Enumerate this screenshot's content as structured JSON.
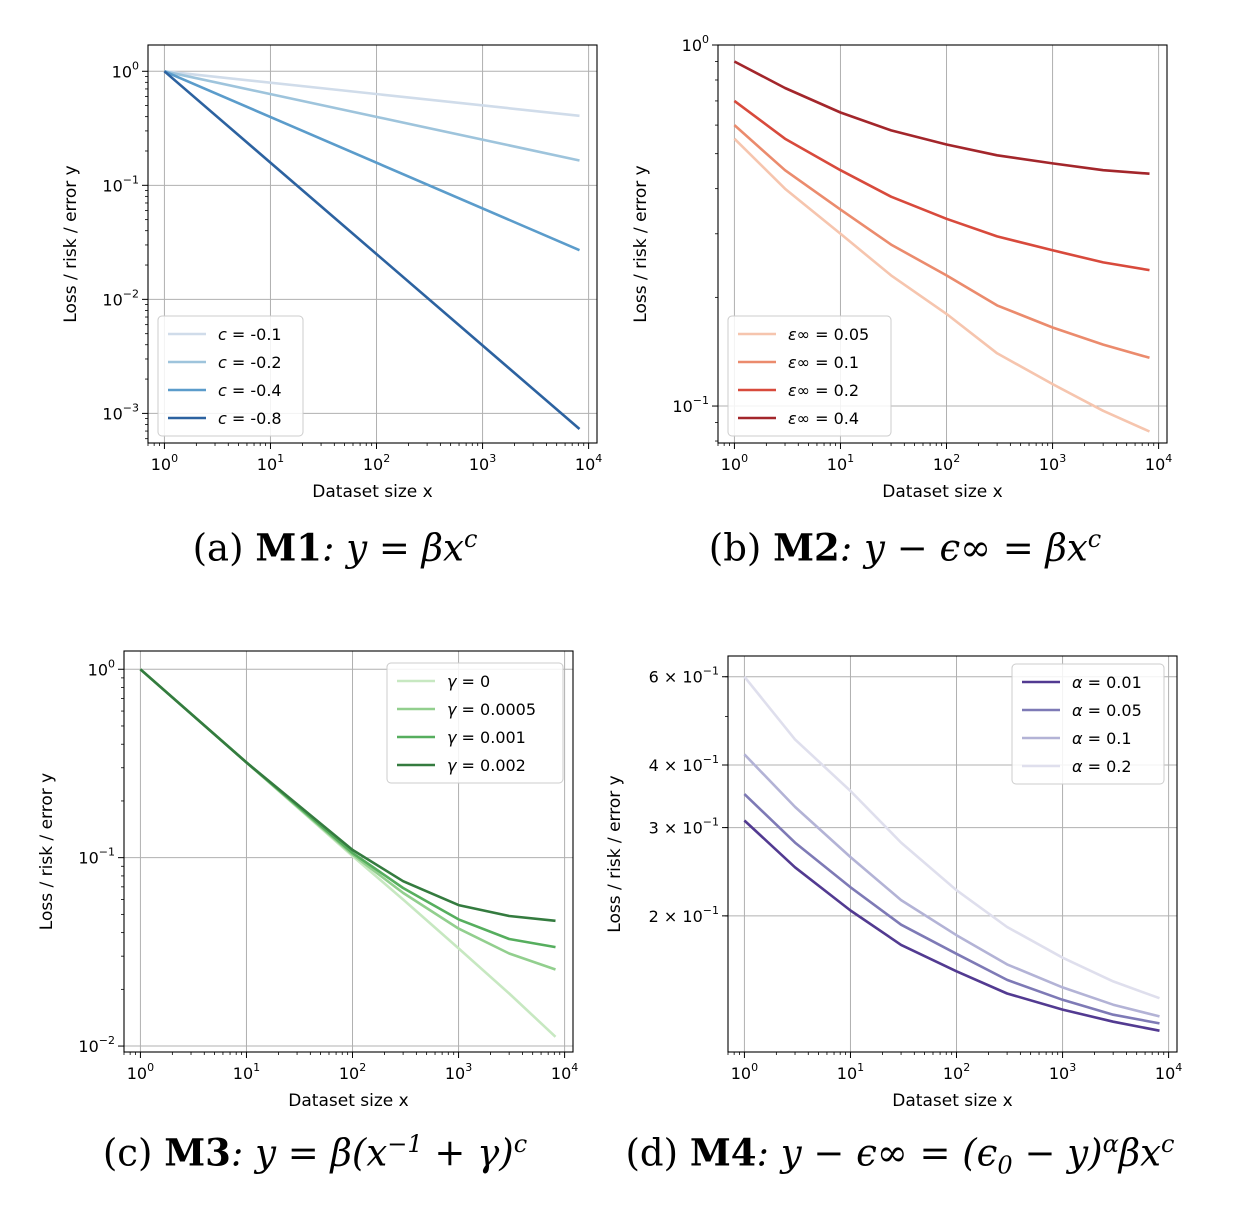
{
  "chart_data": [
    {
      "type": "line",
      "panel": "a",
      "x_scale": "log",
      "y_scale": "log",
      "xlim": [
        0.7,
        12000
      ],
      "ylim": [
        0.00055,
        1.7
      ],
      "xlabel": "Dataset size x",
      "ylabel": "Loss / risk / error y",
      "x_ticks": [
        {
          "v": 1,
          "base": "10",
          "exp": "0"
        },
        {
          "v": 10,
          "base": "10",
          "exp": "1"
        },
        {
          "v": 100,
          "base": "10",
          "exp": "2"
        },
        {
          "v": 1000,
          "base": "10",
          "exp": "3"
        },
        {
          "v": 10000,
          "base": "10",
          "exp": "4"
        }
      ],
      "y_ticks": [
        {
          "v": 1,
          "base": "10",
          "exp": "0"
        },
        {
          "v": 0.1,
          "base": "10",
          "exp": "−1"
        },
        {
          "v": 0.01,
          "base": "10",
          "exp": "−2"
        },
        {
          "v": 0.001,
          "base": "10",
          "exp": "−3"
        }
      ],
      "legend": "lower-left",
      "series": [
        {
          "name": "c = -0.1",
          "sym": "c",
          "val": "-0.1",
          "color": "#d0dcea",
          "x": [
            1,
            8200
          ],
          "y": [
            1.0,
            0.407
          ]
        },
        {
          "name": "c = -0.2",
          "sym": "c",
          "val": "-0.2",
          "color": "#9ec4dc",
          "x": [
            1,
            8200
          ],
          "y": [
            1.0,
            0.165
          ]
        },
        {
          "name": "c = -0.4",
          "sym": "c",
          "val": "-0.4",
          "color": "#5b9ccb",
          "x": [
            1,
            8200
          ],
          "y": [
            1.0,
            0.027
          ]
        },
        {
          "name": "c = -0.8",
          "sym": "c",
          "val": "-0.8",
          "color": "#2c62a0",
          "x": [
            1,
            8200
          ],
          "y": [
            1.0,
            0.00073
          ]
        }
      ]
    },
    {
      "type": "line",
      "panel": "b",
      "x_scale": "log",
      "y_scale": "log",
      "xlim": [
        0.7,
        12000
      ],
      "ylim": [
        0.079,
        1.0
      ],
      "xlabel": "Dataset size x",
      "ylabel": "Loss / risk / error y",
      "x_ticks": [
        {
          "v": 1,
          "base": "10",
          "exp": "0"
        },
        {
          "v": 10,
          "base": "10",
          "exp": "1"
        },
        {
          "v": 100,
          "base": "10",
          "exp": "2"
        },
        {
          "v": 1000,
          "base": "10",
          "exp": "3"
        },
        {
          "v": 10000,
          "base": "10",
          "exp": "4"
        }
      ],
      "y_ticks": [
        {
          "v": 1,
          "base": "10",
          "exp": "0"
        },
        {
          "v": 0.1,
          "base": "10",
          "exp": "−1"
        }
      ],
      "legend": "lower-left",
      "series": [
        {
          "name": "ε∞ = 0.05",
          "sym": "ε∞",
          "val": "0.05",
          "color": "#f6c5ae",
          "x": [
            1,
            3,
            10,
            30,
            100,
            300,
            1000,
            3000,
            8200
          ],
          "y": [
            0.55,
            0.4,
            0.3,
            0.23,
            0.18,
            0.14,
            0.115,
            0.097,
            0.085
          ]
        },
        {
          "name": "ε∞ = 0.1",
          "sym": "ε∞",
          "val": "0.1",
          "color": "#eb8b6d",
          "x": [
            1,
            3,
            10,
            30,
            100,
            300,
            1000,
            3000,
            8200
          ],
          "y": [
            0.6,
            0.45,
            0.35,
            0.28,
            0.23,
            0.19,
            0.165,
            0.148,
            0.136
          ]
        },
        {
          "name": "ε∞ = 0.2",
          "sym": "ε∞",
          "val": "0.2",
          "color": "#d84a3c",
          "x": [
            1,
            3,
            10,
            30,
            100,
            300,
            1000,
            3000,
            8200
          ],
          "y": [
            0.7,
            0.55,
            0.45,
            0.38,
            0.33,
            0.295,
            0.27,
            0.25,
            0.238
          ]
        },
        {
          "name": "ε∞ = 0.4",
          "sym": "ε∞",
          "val": "0.4",
          "color": "#a3262b",
          "x": [
            1,
            3,
            10,
            30,
            100,
            300,
            1000,
            3000,
            8200
          ],
          "y": [
            0.9,
            0.76,
            0.65,
            0.58,
            0.53,
            0.495,
            0.47,
            0.45,
            0.44
          ]
        }
      ]
    },
    {
      "type": "line",
      "panel": "c",
      "x_scale": "log",
      "y_scale": "log",
      "xlim": [
        0.7,
        12000
      ],
      "ylim": [
        0.0093,
        1.25
      ],
      "xlabel": "Dataset size x",
      "ylabel": "Loss / risk / error y",
      "x_ticks": [
        {
          "v": 1,
          "base": "10",
          "exp": "0"
        },
        {
          "v": 10,
          "base": "10",
          "exp": "1"
        },
        {
          "v": 100,
          "base": "10",
          "exp": "2"
        },
        {
          "v": 1000,
          "base": "10",
          "exp": "3"
        },
        {
          "v": 10000,
          "base": "10",
          "exp": "4"
        }
      ],
      "y_ticks": [
        {
          "v": 1,
          "base": "10",
          "exp": "0"
        },
        {
          "v": 0.1,
          "base": "10",
          "exp": "−1"
        },
        {
          "v": 0.01,
          "base": "10",
          "exp": "−2"
        }
      ],
      "legend": "top-right",
      "series": [
        {
          "name": "γ = 0",
          "sym": "γ",
          "val": "0",
          "color": "#c7e8c1",
          "x": [
            1,
            10,
            100,
            300,
            1000,
            3000,
            8200
          ],
          "y": [
            1.0,
            0.32,
            0.102,
            0.06,
            0.033,
            0.019,
            0.0112
          ]
        },
        {
          "name": "γ = 0.0005",
          "sym": "γ",
          "val": "0.0005",
          "color": "#92cf8e",
          "x": [
            1,
            10,
            100,
            300,
            1000,
            3000,
            8200
          ],
          "y": [
            1.0,
            0.32,
            0.104,
            0.065,
            0.042,
            0.031,
            0.0255
          ]
        },
        {
          "name": "γ = 0.001",
          "sym": "γ",
          "val": "0.001",
          "color": "#56ae5e",
          "x": [
            1,
            10,
            100,
            300,
            1000,
            3000,
            8200
          ],
          "y": [
            1.0,
            0.32,
            0.106,
            0.069,
            0.047,
            0.037,
            0.0335
          ]
        },
        {
          "name": "γ = 0.002",
          "sym": "γ",
          "val": "0.002",
          "color": "#347b3f",
          "x": [
            1,
            10,
            100,
            300,
            1000,
            3000,
            8200
          ],
          "y": [
            1.0,
            0.32,
            0.11,
            0.075,
            0.056,
            0.049,
            0.0462
          ]
        }
      ]
    },
    {
      "type": "line",
      "panel": "d",
      "x_scale": "log",
      "y_scale": "log",
      "xlim": [
        0.7,
        12000
      ],
      "ylim": [
        0.107,
        0.66
      ],
      "xlabel": "Dataset size x",
      "ylabel": "Loss / risk / error y",
      "x_ticks": [
        {
          "v": 1,
          "base": "10",
          "exp": "0"
        },
        {
          "v": 10,
          "base": "10",
          "exp": "1"
        },
        {
          "v": 100,
          "base": "10",
          "exp": "2"
        },
        {
          "v": 1000,
          "base": "10",
          "exp": "3"
        },
        {
          "v": 10000,
          "base": "10",
          "exp": "4"
        }
      ],
      "y_ticks": [
        {
          "v": 0.6,
          "base": "6 × 10",
          "exp": "−1"
        },
        {
          "v": 0.4,
          "base": "4 × 10",
          "exp": "−1"
        },
        {
          "v": 0.3,
          "base": "3 × 10",
          "exp": "−1"
        },
        {
          "v": 0.2,
          "base": "2 × 10",
          "exp": "−1"
        }
      ],
      "legend": "top-right",
      "series": [
        {
          "name": "α = 0.01",
          "sym": "α",
          "val": "0.01",
          "color": "#523a91",
          "x": [
            1,
            3,
            10,
            30,
            100,
            300,
            1000,
            3000,
            8200
          ],
          "y": [
            0.31,
            0.25,
            0.205,
            0.175,
            0.155,
            0.14,
            0.13,
            0.123,
            0.118
          ]
        },
        {
          "name": "α = 0.05",
          "sym": "α",
          "val": "0.05",
          "color": "#7e7ab6",
          "x": [
            1,
            3,
            10,
            30,
            100,
            300,
            1000,
            3000,
            8200
          ],
          "y": [
            0.35,
            0.28,
            0.228,
            0.192,
            0.168,
            0.149,
            0.136,
            0.127,
            0.122
          ]
        },
        {
          "name": "α = 0.1",
          "sym": "α",
          "val": "0.1",
          "color": "#b3b3d6",
          "x": [
            1,
            3,
            10,
            30,
            100,
            300,
            1000,
            3000,
            8200
          ],
          "y": [
            0.42,
            0.33,
            0.262,
            0.215,
            0.183,
            0.16,
            0.144,
            0.133,
            0.126
          ]
        },
        {
          "name": "α = 0.2",
          "sym": "α",
          "val": "0.2",
          "color": "#dfdfed",
          "x": [
            1,
            3,
            10,
            30,
            100,
            300,
            1000,
            3000,
            8200
          ],
          "y": [
            0.6,
            0.45,
            0.355,
            0.28,
            0.225,
            0.19,
            0.165,
            0.148,
            0.137
          ]
        }
      ]
    }
  ],
  "captions": {
    "a": {
      "prefix": "(a) ",
      "model": "M1",
      "formula": ": y = βx",
      "sup": "c"
    },
    "b": {
      "prefix": "(b) ",
      "model": "M2",
      "formula": ": y − ϵ∞ = βx",
      "sup": "c"
    },
    "c": {
      "prefix": "(c) ",
      "model": "M3",
      "formula": ": y = β(x",
      "sup1": "−1",
      "mid": " + γ)",
      "sup": "c"
    },
    "d": {
      "prefix": "(d) ",
      "model": "M4",
      "formula": ": y − ϵ∞ = (ϵ",
      "sub": "0",
      "mid": " − y)",
      "sup1": "α",
      "tail": "βx",
      "sup": "c"
    }
  }
}
